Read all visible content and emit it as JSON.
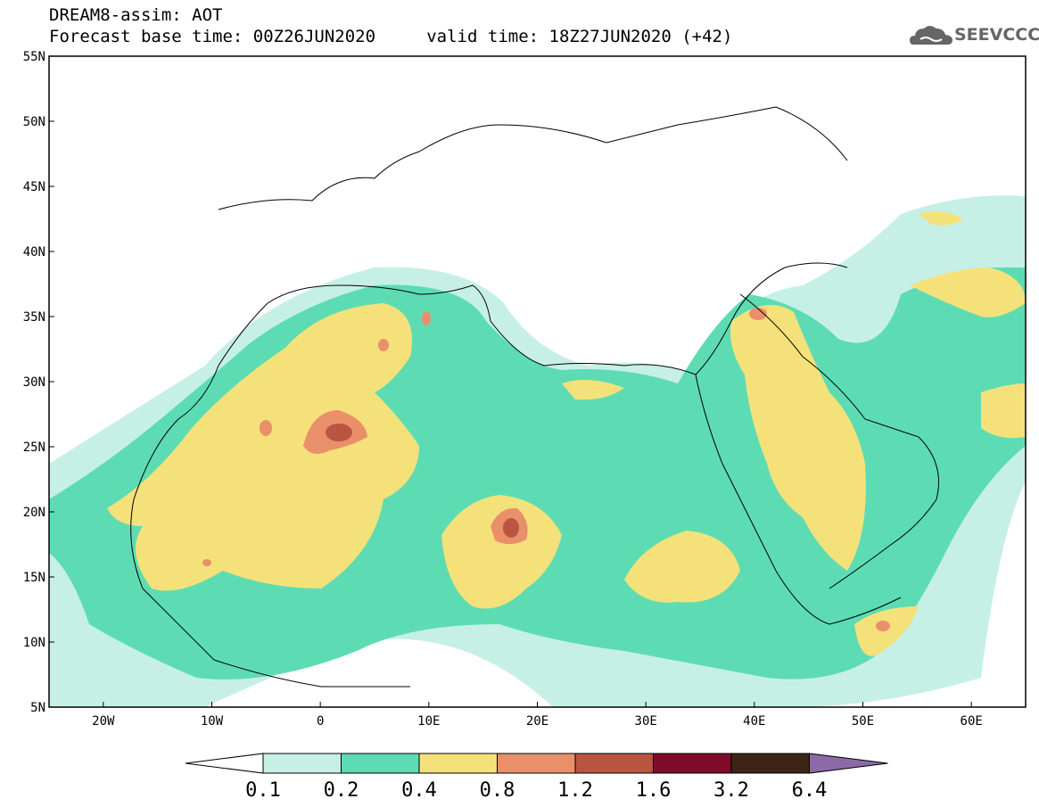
{
  "header": {
    "line1": "DREAM8-assim: AOT",
    "line2": "Forecast base time: 00Z26JUN2020     valid time: 18Z27JUN2020 (+42)"
  },
  "logo": {
    "text": "SEEVCCC",
    "icon": "cloud-logo-icon"
  },
  "map": {
    "lon_range": [
      -25,
      65
    ],
    "lat_range": [
      5,
      55
    ],
    "lat_ticks": [
      {
        "value": 55,
        "label": "55N"
      },
      {
        "value": 50,
        "label": "50N"
      },
      {
        "value": 45,
        "label": "45N"
      },
      {
        "value": 40,
        "label": "40N"
      },
      {
        "value": 35,
        "label": "35N"
      },
      {
        "value": 30,
        "label": "30N"
      },
      {
        "value": 25,
        "label": "25N"
      },
      {
        "value": 20,
        "label": "20N"
      },
      {
        "value": 15,
        "label": "15N"
      },
      {
        "value": 10,
        "label": "10N"
      },
      {
        "value": 5,
        "label": "5N"
      }
    ],
    "lon_ticks": [
      {
        "value": -20,
        "label": "20W"
      },
      {
        "value": -10,
        "label": "10W"
      },
      {
        "value": 0,
        "label": "0"
      },
      {
        "value": 10,
        "label": "10E"
      },
      {
        "value": 20,
        "label": "20E"
      },
      {
        "value": 30,
        "label": "30E"
      },
      {
        "value": 40,
        "label": "40E"
      },
      {
        "value": 50,
        "label": "50E"
      },
      {
        "value": 60,
        "label": "60E"
      }
    ]
  },
  "colorbar": {
    "levels": [
      "0.1",
      "0.2",
      "0.4",
      "0.8",
      "1.2",
      "1.6",
      "3.2",
      "6.4"
    ],
    "colors": [
      "#ffffff",
      "#c6f0e6",
      "#5ddcb4",
      "#f5e17a",
      "#e9906a",
      "#b95540",
      "#7e0c2a",
      "#3d2516",
      "#8c6aa8"
    ]
  },
  "colors": {
    "aot_0_1": "#c6f0e6",
    "aot_0_2": "#5ddcb4",
    "aot_0_4": "#f5e17a",
    "aot_0_8": "#e9906a",
    "aot_1_2": "#b95540",
    "aot_1_6": "#7e0c2a"
  }
}
